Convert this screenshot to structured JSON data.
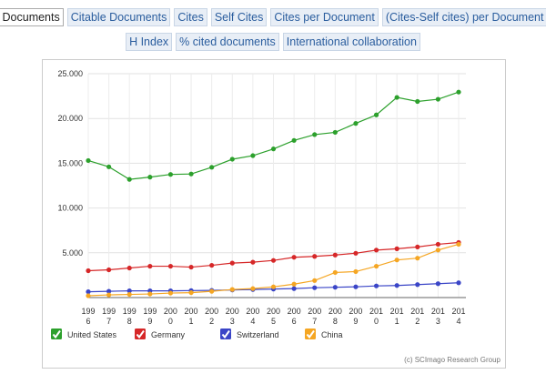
{
  "tabs_row1": [
    "Documents",
    "Citable Documents",
    "Cites",
    "Self Cites",
    "Cites per Document",
    "(Cites-Self cites) per Document"
  ],
  "tabs_row2": [
    "H Index",
    "% cited documents",
    "International collaboration"
  ],
  "active_tab": "Documents",
  "credit": "(c) SCImago Research Group",
  "chart_data": {
    "type": "line",
    "title": "",
    "xlabel": "",
    "ylabel": "",
    "ylim": [
      0,
      25000
    ],
    "y_ticks": [
      5000,
      10000,
      15000,
      20000,
      25000
    ],
    "y_tick_labels": [
      "5.000",
      "10.000",
      "15.000",
      "20.000",
      "25.000"
    ],
    "categories": [
      "1996",
      "1997",
      "1998",
      "1999",
      "2000",
      "2001",
      "2002",
      "2003",
      "2004",
      "2005",
      "2006",
      "2007",
      "2008",
      "2009",
      "2010",
      "2011",
      "2012",
      "2013",
      "2014"
    ],
    "x_tick_labels_top": [
      "199",
      "199",
      "199",
      "199",
      "200",
      "200",
      "200",
      "200",
      "200",
      "200",
      "200",
      "200",
      "200",
      "200",
      "201",
      "201",
      "201",
      "201",
      "201"
    ],
    "x_tick_labels_bottom": [
      "6",
      "7",
      "8",
      "9",
      "0",
      "1",
      "2",
      "3",
      "4",
      "5",
      "6",
      "7",
      "8",
      "9",
      "0",
      "1",
      "2",
      "3",
      "4"
    ],
    "series": [
      {
        "name": "United States",
        "color": "#2ca02c",
        "values": [
          15300,
          14600,
          13200,
          13450,
          13750,
          13800,
          14550,
          15450,
          15850,
          16600,
          17550,
          18200,
          18450,
          19450,
          20400,
          22350,
          21900,
          22150,
          22950
        ]
      },
      {
        "name": "Germany",
        "color": "#d62728",
        "values": [
          3000,
          3100,
          3300,
          3500,
          3500,
          3400,
          3600,
          3850,
          3950,
          4150,
          4500,
          4600,
          4750,
          4950,
          5300,
          5450,
          5650,
          5950,
          6150
        ]
      },
      {
        "name": "Switzerland",
        "color": "#3a45c7",
        "values": [
          650,
          700,
          750,
          750,
          750,
          780,
          800,
          850,
          900,
          950,
          1000,
          1100,
          1150,
          1200,
          1300,
          1350,
          1450,
          1550,
          1650
        ]
      },
      {
        "name": "China",
        "color": "#f5a623",
        "values": [
          200,
          300,
          350,
          400,
          500,
          550,
          700,
          900,
          1000,
          1200,
          1500,
          1900,
          2800,
          2900,
          3500,
          4200,
          4400,
          5300,
          5950
        ]
      }
    ],
    "legend": [
      "United States",
      "Germany",
      "Switzerland",
      "China"
    ]
  }
}
